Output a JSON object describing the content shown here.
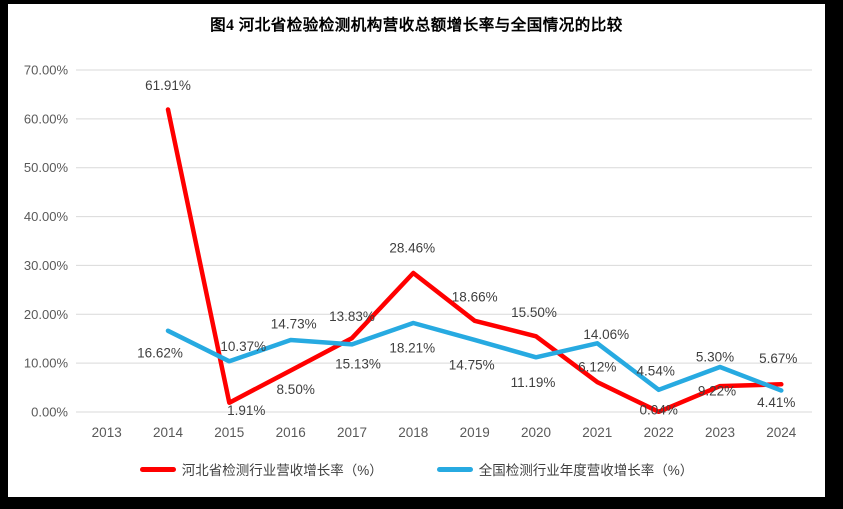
{
  "title": "图4 河北省检验检测机构营收总额增长率与全国情况的比较",
  "colors": {
    "hebei": "#FF0000",
    "national": "#27AAE1",
    "gridline": "#D9D9D9",
    "axis_text": "#595959",
    "label_text": "#3F3F3F",
    "frame": "#000000",
    "background": "#FFFFFF"
  },
  "chart_data": {
    "type": "line",
    "title": "图4 河北省检验检测机构营收总额增长率与全国情况的比较",
    "categories": [
      "2013",
      "2014",
      "2015",
      "2016",
      "2017",
      "2018",
      "2019",
      "2020",
      "2021",
      "2022",
      "2023",
      "2024"
    ],
    "series": [
      {
        "id": "hebei",
        "name": "河北省检测行业营收增长率（%）",
        "color_key": "hebei",
        "values": [
          null,
          61.91,
          1.91,
          8.5,
          15.13,
          28.46,
          18.66,
          15.5,
          6.12,
          0.04,
          5.3,
          5.67
        ],
        "labels": [
          "",
          "61.91%",
          "1.91%",
          "8.50%",
          "15.13%",
          "28.46%",
          "18.66%",
          "15.50%",
          "6.12%",
          "0.04%",
          "5.30%",
          "5.67%"
        ],
        "label_offsets": [
          [
            0,
            0
          ],
          [
            0,
            -24
          ],
          [
            17,
            8
          ],
          [
            5,
            19
          ],
          [
            6,
            26
          ],
          [
            -1,
            -25
          ],
          [
            0,
            -24
          ],
          [
            -2,
            -24
          ],
          [
            0,
            -15
          ],
          [
            0,
            -2
          ],
          [
            -5,
            -29
          ],
          [
            -3,
            -26
          ]
        ]
      },
      {
        "id": "national",
        "name": "全国检测行业年度营收增长率（%）",
        "color_key": "national",
        "values": [
          null,
          16.62,
          10.37,
          14.73,
          13.83,
          18.21,
          14.75,
          11.19,
          14.06,
          4.54,
          9.22,
          4.41
        ],
        "labels": [
          "",
          "16.62%",
          "10.37%",
          "14.73%",
          "13.83%",
          "18.21%",
          "14.75%",
          "11.19%",
          "14.06%",
          "4.54%",
          "9.22%",
          "4.41%"
        ],
        "label_offsets": [
          [
            0,
            0
          ],
          [
            -8,
            22
          ],
          [
            14,
            -15
          ],
          [
            3,
            -16
          ],
          [
            0,
            -28
          ],
          [
            -1,
            25
          ],
          [
            -3,
            25
          ],
          [
            -3,
            25
          ],
          [
            9,
            -9
          ],
          [
            -3,
            -19
          ],
          [
            -3,
            24
          ],
          [
            -5,
            12
          ]
        ]
      }
    ],
    "xlabel": "",
    "ylabel": "",
    "ylim": [
      0,
      70
    ],
    "y_axis": {
      "min": 0,
      "max": 70,
      "step": 10,
      "tick_labels": [
        "70.00%",
        "60.00%",
        "50.00%",
        "40.00%",
        "30.00%",
        "20.00%",
        "10.00%",
        "0.00%"
      ]
    },
    "grid": true,
    "legend_position": "bottom"
  }
}
